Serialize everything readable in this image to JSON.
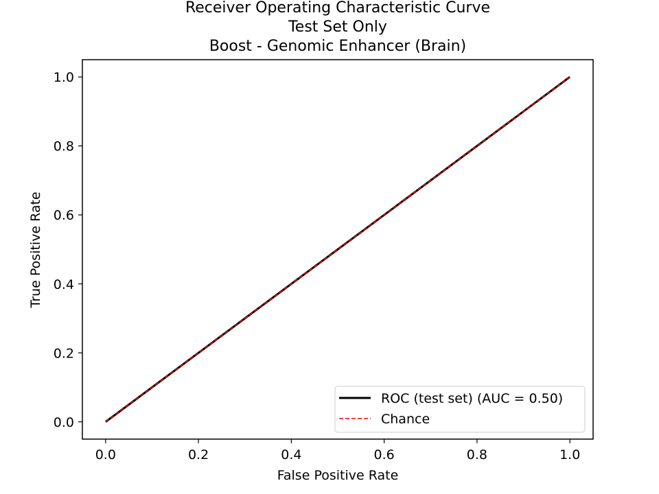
{
  "chart_data": {
    "type": "line",
    "title_lines": [
      "Receiver Operating Characteristic Curve",
      "Test Set Only",
      "Boost - Genomic Enhancer (Brain)"
    ],
    "xlabel": "False Positive Rate",
    "ylabel": "True Positive Rate",
    "xlim": [
      -0.05,
      1.05
    ],
    "ylim": [
      -0.05,
      1.05
    ],
    "xticks": [
      0.0,
      0.2,
      0.4,
      0.6,
      0.8,
      1.0
    ],
    "xtick_labels": [
      "0.0",
      "0.2",
      "0.4",
      "0.6",
      "0.8",
      "1.0"
    ],
    "yticks": [
      0.0,
      0.2,
      0.4,
      0.6,
      0.8,
      1.0
    ],
    "ytick_labels": [
      "0.0",
      "0.2",
      "0.4",
      "0.6",
      "0.8",
      "1.0"
    ],
    "grid": false,
    "legend_position": "lower-right",
    "series": [
      {
        "name": "ROC (test set) (AUC = 0.50)",
        "color": "#000000",
        "style": "solid",
        "x": [
          0.0,
          1.0
        ],
        "y": [
          0.0,
          1.0
        ]
      },
      {
        "name": "Chance",
        "color": "#ff0000",
        "style": "dashed",
        "x": [
          0.0,
          1.0
        ],
        "y": [
          0.0,
          1.0
        ]
      }
    ]
  }
}
